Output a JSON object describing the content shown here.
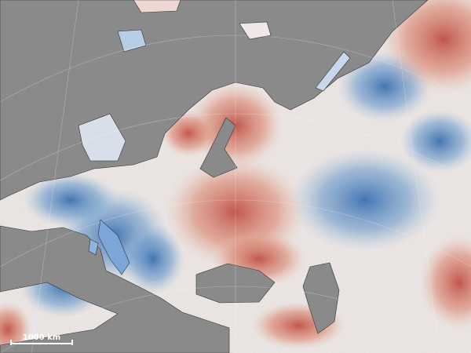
{
  "scale_bar": {
    "label": "1000 km"
  }
}
